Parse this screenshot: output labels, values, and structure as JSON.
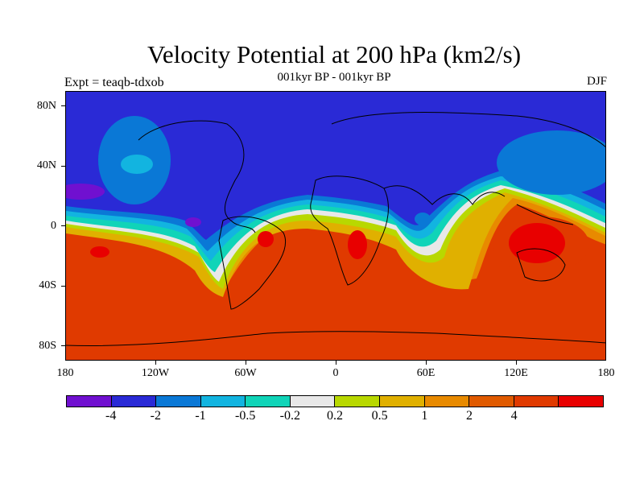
{
  "title": "Velocity Potential at 200 hPa (km2/s)",
  "subtitle": "001kyr BP - 001kyr BP",
  "experiment": "Expt = teaqb-tdxob",
  "season": "DJF",
  "map": {
    "projection": "cylindrical-equidistant",
    "lon_range": [
      -180,
      180
    ],
    "lat_range": [
      -90,
      90
    ],
    "lat_labels": [
      "80N",
      "40N",
      "0",
      "40S",
      "80S"
    ],
    "lon_labels": [
      "180",
      "120W",
      "60W",
      "0",
      "60E",
      "120E",
      "180"
    ],
    "coastlines": "black",
    "field": "velocity potential anomaly, positive (divergent) over tropics/southern hemisphere, negative over northern hemisphere"
  },
  "colorbar": {
    "colors": [
      "#7010d0",
      "#2a2ad6",
      "#0a78d6",
      "#12b4e0",
      "#10d4b8",
      "#e8e8e8",
      "#b8d800",
      "#e0b000",
      "#e88a00",
      "#e05a00",
      "#e03a00",
      "#e80000"
    ],
    "labels": [
      "-4",
      "-2",
      "-1",
      "-0.5",
      "-0.2",
      "0.2",
      "0.5",
      "1",
      "2",
      "4"
    ]
  }
}
